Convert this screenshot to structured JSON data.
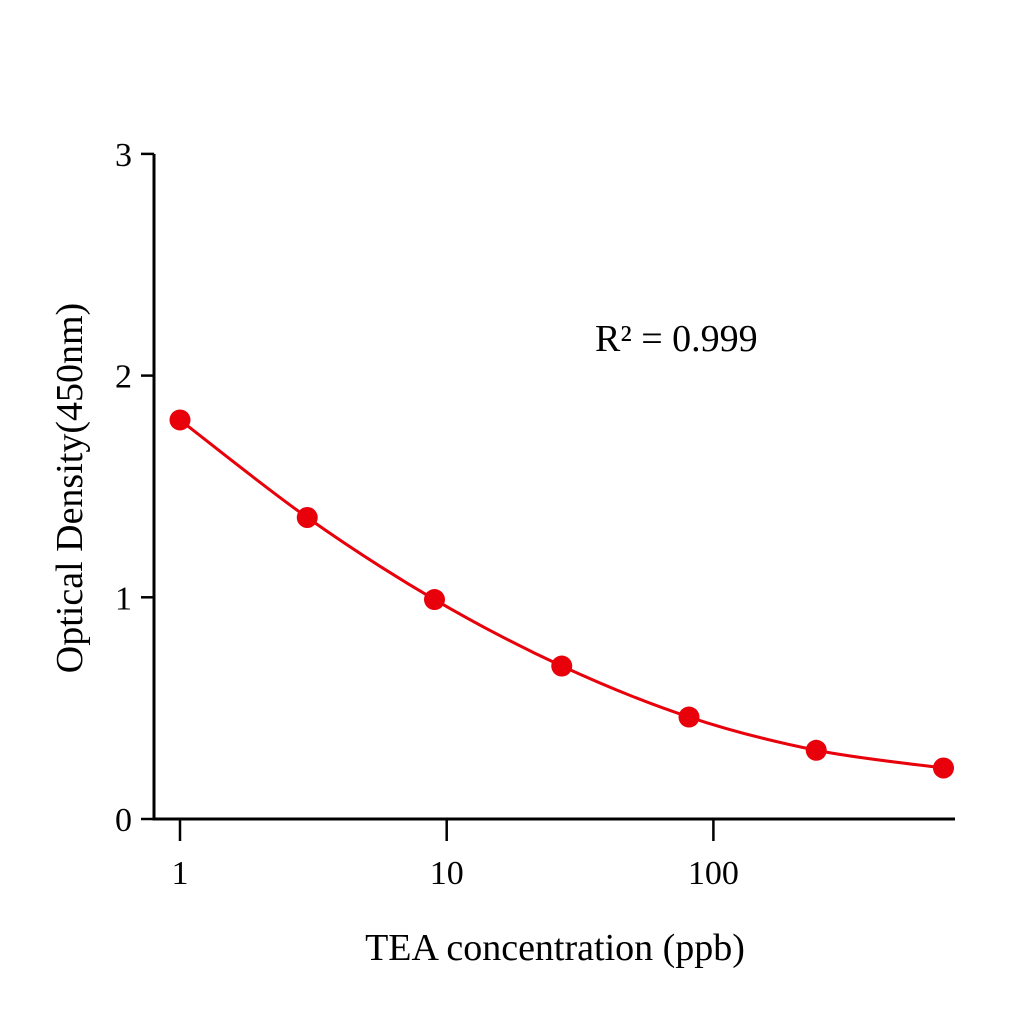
{
  "chart_data": {
    "type": "line",
    "title": "",
    "xlabel": "TEA concentration (ppb)",
    "ylabel": "Optical Density(450nm)",
    "xscale": "log",
    "xlim": [
      0.9,
      800
    ],
    "ylim": [
      0,
      3
    ],
    "xticks": [
      1,
      10,
      100
    ],
    "xtick_labels": [
      "1",
      "10",
      "100"
    ],
    "yticks": [
      0,
      1,
      2,
      3
    ],
    "ytick_labels": [
      "0",
      "1",
      "2",
      "3"
    ],
    "grid": false,
    "annotation": "R² = 0.999",
    "series": [
      {
        "x": [
          1,
          3,
          9,
          27,
          81,
          243,
          729
        ],
        "y": [
          1.8,
          1.36,
          0.99,
          0.69,
          0.46,
          0.31,
          0.23
        ],
        "color": "#e8000b",
        "marker": "circle",
        "fit": "smooth curve"
      }
    ]
  }
}
